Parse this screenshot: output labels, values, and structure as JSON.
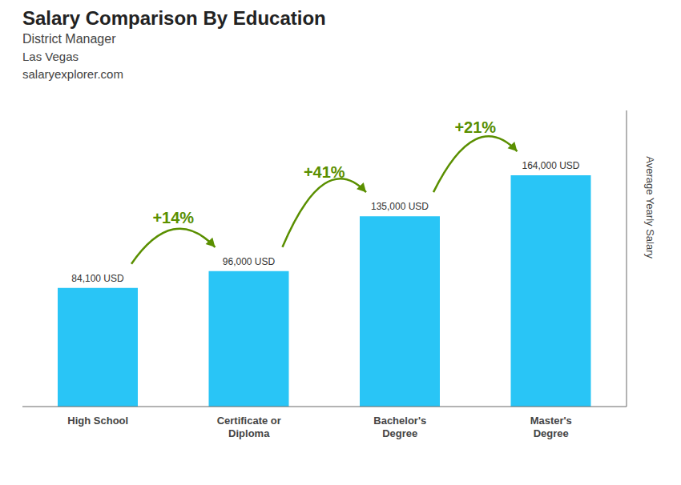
{
  "chart_data": {
    "type": "bar",
    "title": "Salary Comparison By Education",
    "subtitle": "District Manager",
    "y_label": "Average Yearly Salary",
    "categories": [
      "High School",
      "Certificate or\nDiploma",
      "Bachelor's\nDegree",
      "Master's\nDegree"
    ],
    "values": [
      84100,
      96000,
      135000,
      164000
    ],
    "value_labels": [
      "84,100 USD",
      "96,000 USD",
      "135,000 USD",
      "164,000 USD"
    ],
    "data_labels": true,
    "color": "#29c5f6",
    "ylim": [
      0,
      210000
    ],
    "tick_labels": "x",
    "grid": false,
    "annotations": [
      {
        "text": "Las Vegas"
      },
      {
        "text": "salaryexplorer.com"
      },
      {
        "text": "+14%",
        "from": "High School",
        "to": "Certificate or\nDiploma"
      },
      {
        "text": "+41%",
        "from": "Certificate or\nDiploma",
        "to": "Bachelor's\nDegree"
      },
      {
        "text": "+21%",
        "from": "Bachelor's\nDegree",
        "to": "Master's\nDegree"
      }
    ]
  }
}
